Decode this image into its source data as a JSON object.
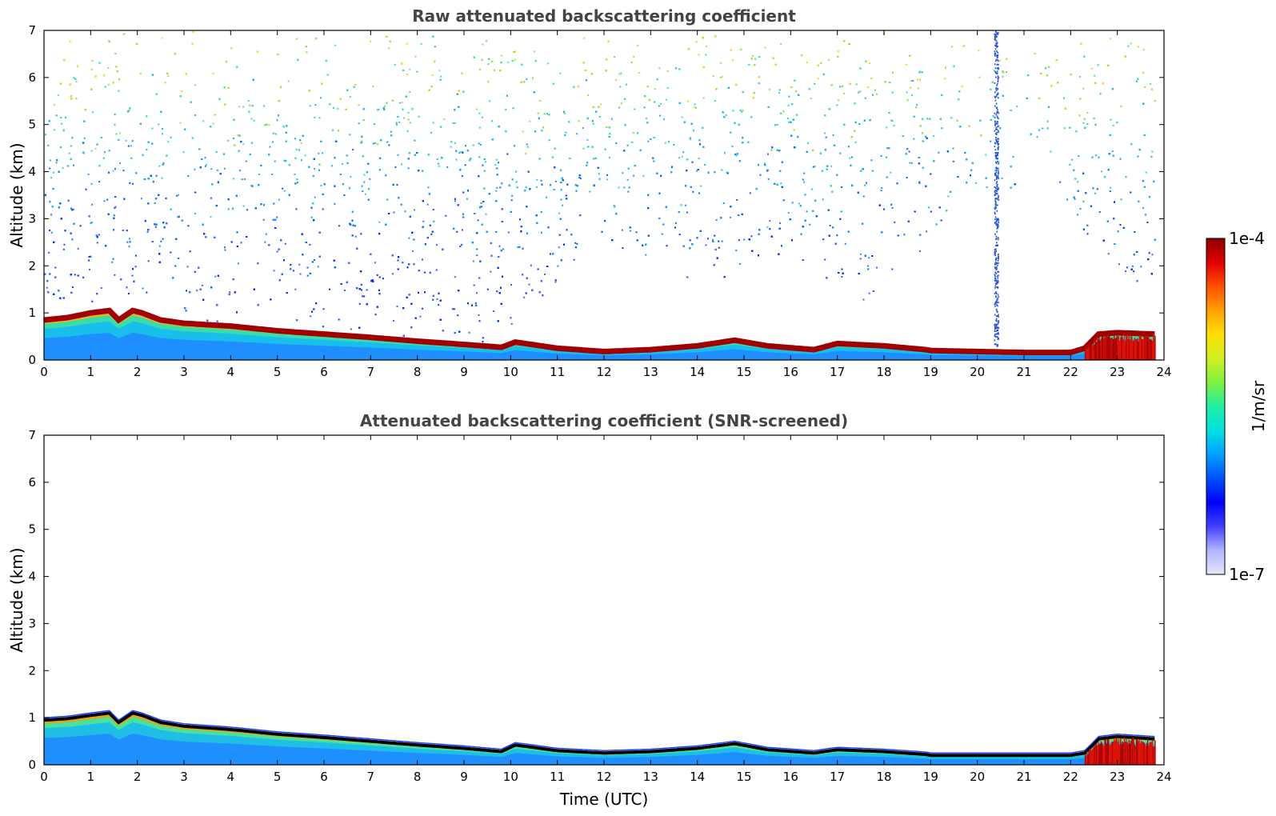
{
  "chart_data": [
    {
      "type": "heatmap",
      "title": "Raw attenuated backscattering coefficient",
      "xlabel": "",
      "ylabel": "Altitude (km)",
      "xlim": [
        0,
        24
      ],
      "ylim": [
        0,
        7
      ],
      "x_ticks": [
        "0",
        "1",
        "2",
        "3",
        "4",
        "5",
        "6",
        "7",
        "8",
        "9",
        "10",
        "11",
        "12",
        "13",
        "14",
        "15",
        "16",
        "17",
        "18",
        "19",
        "20",
        "21",
        "22",
        "23",
        "24"
      ],
      "y_ticks": [
        "0",
        "1",
        "2",
        "3",
        "4",
        "5",
        "6",
        "7"
      ],
      "data_end_hour": 23.8,
      "boundary_layer_top_km": {
        "x": [
          0,
          0.5,
          1.0,
          1.4,
          1.6,
          1.9,
          2.1,
          2.5,
          3.0,
          4.0,
          5.0,
          6.0,
          7.0,
          8.0,
          9.0,
          9.8,
          10.1,
          11.0,
          12.0,
          13.0,
          14.0,
          14.8,
          15.5,
          16.5,
          17.0,
          18.0,
          18.9,
          19.0,
          20.0,
          21.0,
          22.0,
          22.3,
          22.6,
          23.0,
          23.8
        ],
        "y": [
          0.85,
          0.9,
          1.0,
          1.05,
          0.85,
          1.05,
          1.0,
          0.85,
          0.78,
          0.72,
          0.62,
          0.55,
          0.48,
          0.4,
          0.33,
          0.27,
          0.38,
          0.25,
          0.18,
          0.22,
          0.3,
          0.42,
          0.3,
          0.22,
          0.35,
          0.3,
          0.22,
          0.2,
          0.18,
          0.16,
          0.16,
          0.25,
          0.55,
          0.58,
          0.55
        ]
      },
      "scatter_profile": [
        {
          "x": 0,
          "top_of_noise_free_km": 0.0
        },
        {
          "x": 9,
          "top_of_noise_free_km": 0.0
        },
        {
          "x": 10.5,
          "top_of_noise_free_km": 1.1
        },
        {
          "x": 12,
          "top_of_noise_free_km": 2.5
        },
        {
          "x": 14,
          "top_of_noise_free_km": 1.6
        },
        {
          "x": 16,
          "top_of_noise_free_km": 2.2
        },
        {
          "x": 17.5,
          "top_of_noise_free_km": 1.2
        },
        {
          "x": 19.5,
          "top_of_noise_free_km": 3.0
        },
        {
          "x": 21.5,
          "top_of_noise_free_km": 4.0
        },
        {
          "x": 23,
          "top_of_noise_free_km": 1.5
        }
      ],
      "noise_strip": {
        "x": 20.4,
        "width_hours": 0.08
      }
    },
    {
      "type": "heatmap",
      "title": "Attenuated backscattering coefficient (SNR-screened)",
      "xlabel": "Time (UTC)",
      "ylabel": "Altitude (km)",
      "xlim": [
        0,
        24
      ],
      "ylim": [
        0,
        7
      ],
      "x_ticks": [
        "0",
        "1",
        "2",
        "3",
        "4",
        "5",
        "6",
        "7",
        "8",
        "9",
        "10",
        "11",
        "12",
        "13",
        "14",
        "15",
        "16",
        "17",
        "18",
        "19",
        "20",
        "21",
        "22",
        "23",
        "24"
      ],
      "y_ticks": [
        "0",
        "1",
        "2",
        "3",
        "4",
        "5",
        "6",
        "7"
      ],
      "data_end_hour": 23.8,
      "boundary_layer_top_km": {
        "x": [
          0,
          0.5,
          1.0,
          1.4,
          1.6,
          1.9,
          2.1,
          2.5,
          3.0,
          4.0,
          5.0,
          6.0,
          7.0,
          8.0,
          9.0,
          9.8,
          10.1,
          11.0,
          12.0,
          13.0,
          14.0,
          14.8,
          15.5,
          16.5,
          17.0,
          18.0,
          18.9,
          19.0,
          20.0,
          21.0,
          22.0,
          22.3,
          22.6,
          23.0,
          23.8
        ],
        "y": [
          0.95,
          0.98,
          1.05,
          1.1,
          0.9,
          1.1,
          1.05,
          0.9,
          0.82,
          0.75,
          0.65,
          0.58,
          0.5,
          0.42,
          0.35,
          0.28,
          0.42,
          0.3,
          0.25,
          0.28,
          0.35,
          0.45,
          0.32,
          0.25,
          0.32,
          0.28,
          0.22,
          0.2,
          0.2,
          0.2,
          0.2,
          0.25,
          0.55,
          0.6,
          0.55
        ]
      }
    }
  ],
  "colorbar": {
    "label": "1/m/sr",
    "max_label": "1e-4",
    "min_label": "1e-7",
    "colors": [
      "#e6e6fa",
      "#b0b4ff",
      "#4040ff",
      "#0000ff",
      "#0050ff",
      "#00a0ff",
      "#00e0e0",
      "#20f0a0",
      "#80f040",
      "#d0f020",
      "#ffe000",
      "#ffa000",
      "#ff5000",
      "#e00000",
      "#8b0000"
    ]
  }
}
